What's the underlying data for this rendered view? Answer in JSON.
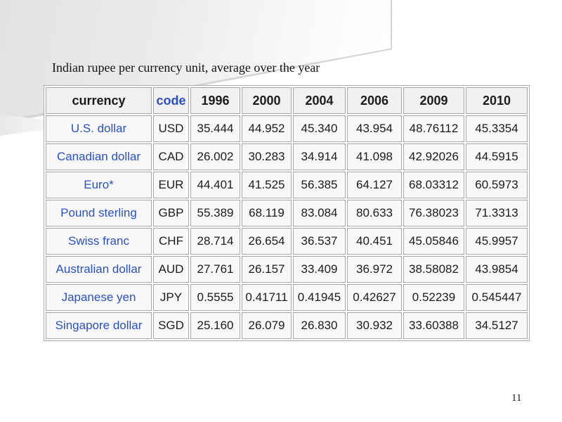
{
  "slide": {
    "title": "Indian rupee per currency unit, average over the year",
    "page_number": "11"
  },
  "table": {
    "columns": [
      "currency",
      "code",
      "1996",
      "2000",
      "2004",
      "2006",
      "2009",
      "2010"
    ],
    "rows": [
      {
        "currency": "U.S. dollar",
        "code": "USD",
        "values": [
          "35.444",
          "44.952",
          "45.340",
          "43.954",
          "48.76112",
          "45.3354"
        ]
      },
      {
        "currency": "Canadian dollar",
        "code": "CAD",
        "values": [
          "26.002",
          "30.283",
          "34.914",
          "41.098",
          "42.92026",
          "44.5915"
        ]
      },
      {
        "currency": "Euro*",
        "code": "EUR",
        "values": [
          "44.401",
          "41.525",
          "56.385",
          "64.127",
          "68.03312",
          "60.5973"
        ]
      },
      {
        "currency": "Pound sterling",
        "code": "GBP",
        "values": [
          "55.389",
          "68.119",
          "83.084",
          "80.633",
          "76.38023",
          "71.3313"
        ]
      },
      {
        "currency": "Swiss franc",
        "code": "CHF",
        "values": [
          "28.714",
          "26.654",
          "36.537",
          "40.451",
          "45.05846",
          "45.9957"
        ]
      },
      {
        "currency": "Australian dollar",
        "code": "AUD",
        "values": [
          "27.761",
          "26.157",
          "33.409",
          "36.972",
          "38.58082",
          "43.9854"
        ]
      },
      {
        "currency": "Japanese yen",
        "code": "JPY",
        "values": [
          "0.5555",
          "0.41711",
          "0.41945",
          "0.42627",
          "0.52239",
          "0.545447"
        ]
      },
      {
        "currency": "Singapore dollar",
        "code": "SGD",
        "values": [
          "25.160",
          "26.079",
          "26.830",
          "30.932",
          "33.60388",
          "34.5127"
        ]
      }
    ],
    "colors": {
      "link_blue": "#2b51bd",
      "cell_background": "#f8f8f8",
      "header_background": "#f0f0f0",
      "border_gray": "#a6a6a6"
    }
  }
}
